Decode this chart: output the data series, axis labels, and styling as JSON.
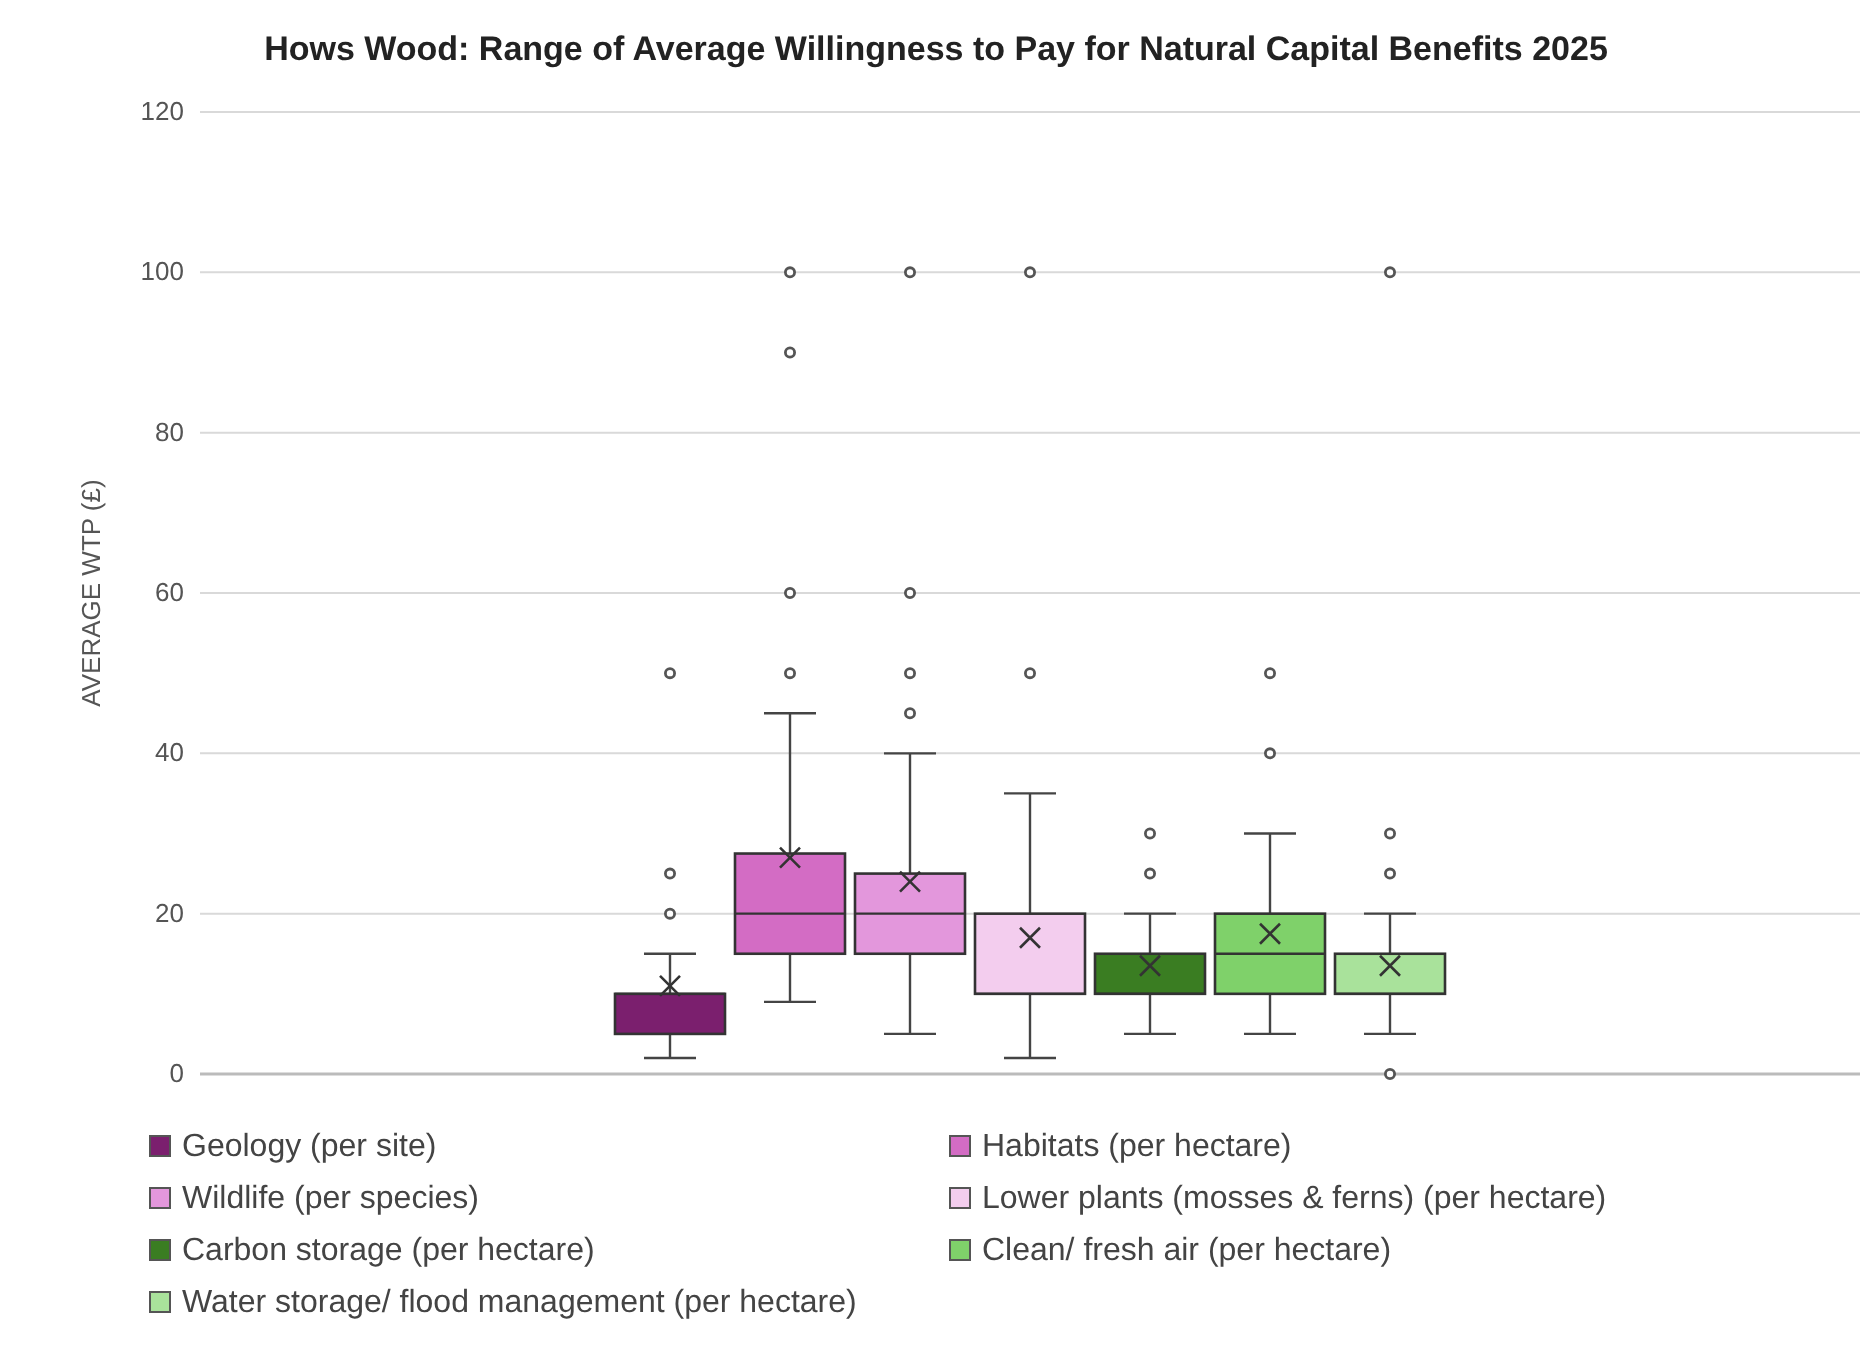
{
  "chart_data": {
    "type": "box",
    "title": "Hows Wood: Range of Average Willingness to Pay for Natural Capital Benefits 2025",
    "ylabel": "AVERAGE WTP (£)",
    "categories": [
      null
    ],
    "ylim": [
      0,
      120
    ],
    "yticks": [
      0,
      20,
      40,
      60,
      80,
      100,
      120
    ],
    "grid": "y",
    "legend": "bottom",
    "series": [
      {
        "name": "Geology (per site)",
        "color": "#7b1f6e",
        "boxes": [
          {
            "low": 2,
            "q1": 5,
            "median": 10,
            "q3": 10,
            "high": 15,
            "mean": 11,
            "outliers": [
              20,
              25,
              50
            ]
          }
        ]
      },
      {
        "name": "Habitats (per hectare)",
        "color": "#d36cc4",
        "boxes": [
          {
            "low": 9,
            "q1": 15,
            "median": 20,
            "q3": 27.5,
            "high": 45,
            "mean": 27,
            "outliers": [
              50,
              60,
              90,
              100
            ]
          }
        ]
      },
      {
        "name": "Wildlife (per species)",
        "color": "#e397dc",
        "boxes": [
          {
            "low": 5,
            "q1": 15,
            "median": 20,
            "q3": 25,
            "high": 40,
            "mean": 24,
            "outliers": [
              45,
              50,
              60,
              100
            ]
          }
        ]
      },
      {
        "name": "Lower plants (mosses & ferns) (per hectare)",
        "color": "#f3cdee",
        "boxes": [
          {
            "low": 2,
            "q1": 10,
            "median": 10,
            "q3": 20,
            "high": 35,
            "mean": 17,
            "outliers": [
              50,
              100
            ]
          }
        ]
      },
      {
        "name": "Carbon storage (per hectare)",
        "color": "#3a7d22",
        "boxes": [
          {
            "low": 5,
            "q1": 10,
            "median": 10,
            "q3": 15,
            "high": 20,
            "mean": 13.5,
            "outliers": [
              25,
              30
            ]
          }
        ]
      },
      {
        "name": "Clean/ fresh air (per hectare)",
        "color": "#7fd16a",
        "boxes": [
          {
            "low": 5,
            "q1": 10,
            "median": 15,
            "q3": 20,
            "high": 30,
            "mean": 17.5,
            "outliers": [
              40,
              50
            ]
          }
        ]
      },
      {
        "name": "Water storage/ flood management (per hectare)",
        "color": "#a9e29b",
        "boxes": [
          {
            "low": 5,
            "q1": 10,
            "median": 10,
            "q3": 15,
            "high": 20,
            "mean": 13.5,
            "outliers": [
              0,
              25,
              30,
              100
            ]
          }
        ]
      }
    ]
  }
}
